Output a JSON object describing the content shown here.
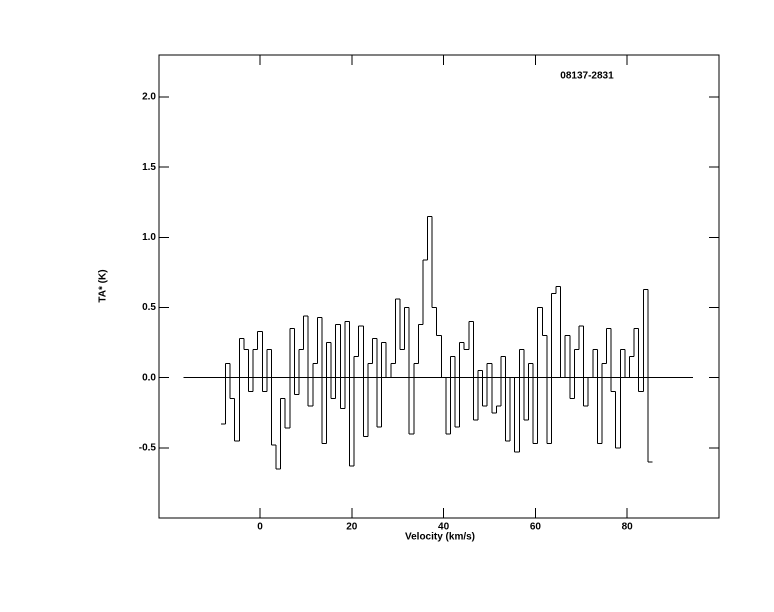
{
  "chart_data": {
    "type": "step",
    "title": "08137-2831",
    "xlabel": "Velocity (km/s)",
    "ylabel": "TA* (K)",
    "xlim": [
      -22,
      100
    ],
    "ylim": [
      -1.0,
      2.3
    ],
    "xticks": [
      0,
      20,
      40,
      60,
      80
    ],
    "yticks": [
      -0.5,
      {
        "value": 0,
        "label": "0.0"
      },
      0.5,
      {
        "value": 1,
        "label": "1.0"
      },
      1.5,
      {
        "value": 2,
        "label": "2.0"
      }
    ],
    "color": "#000000",
    "hline": {
      "y": 0,
      "xmin": -16.7,
      "xmax": 94.3
    },
    "x": [
      -8,
      -7,
      -6,
      -5,
      -4,
      -3,
      -2,
      -1,
      0,
      1,
      2,
      3,
      4,
      5,
      6,
      7,
      8,
      9,
      10,
      11,
      12,
      13,
      14,
      15,
      16,
      17,
      18,
      19,
      20,
      21,
      22,
      23,
      24,
      25,
      26,
      27,
      28,
      29,
      30,
      31,
      32,
      33,
      34,
      35,
      36,
      37,
      38,
      39,
      40,
      41,
      42,
      43,
      44,
      45,
      46,
      47,
      48,
      49,
      50,
      51,
      52,
      53,
      54,
      55,
      56,
      57,
      58,
      59,
      60,
      61,
      62,
      63,
      64,
      65,
      66,
      67,
      68,
      69,
      70,
      71,
      72,
      73,
      74,
      75,
      76,
      77,
      78,
      79,
      80,
      81,
      82,
      83,
      84,
      85
    ],
    "values": [
      -0.33,
      0.1,
      -0.15,
      -0.45,
      0.28,
      0.2,
      -0.1,
      0.2,
      0.33,
      -0.1,
      0.2,
      -0.48,
      -0.65,
      -0.15,
      -0.36,
      0.35,
      -0.12,
      0.2,
      0.44,
      -0.2,
      0.1,
      0.43,
      -0.47,
      0.25,
      -0.15,
      0.38,
      -0.22,
      0.4,
      -0.63,
      0.15,
      0.37,
      -0.42,
      0.1,
      0.28,
      -0.35,
      0.25,
      0.0,
      0.1,
      0.56,
      0.2,
      0.5,
      -0.4,
      0.1,
      0.38,
      0.84,
      1.15,
      0.5,
      0.3,
      0.0,
      -0.4,
      0.15,
      -0.35,
      0.25,
      0.2,
      0.4,
      -0.3,
      0.05,
      -0.2,
      0.1,
      -0.25,
      -0.2,
      0.15,
      -0.45,
      0.0,
      -0.53,
      0.2,
      -0.3,
      0.1,
      -0.47,
      0.5,
      0.3,
      -0.47,
      0.6,
      0.65,
      0.0,
      0.3,
      -0.15,
      0.2,
      0.37,
      -0.2,
      0.0,
      0.2,
      -0.47,
      0.1,
      0.35,
      -0.1,
      -0.5,
      0.2,
      0.0,
      0.15,
      0.35,
      -0.1,
      0.63,
      -0.6
    ]
  }
}
